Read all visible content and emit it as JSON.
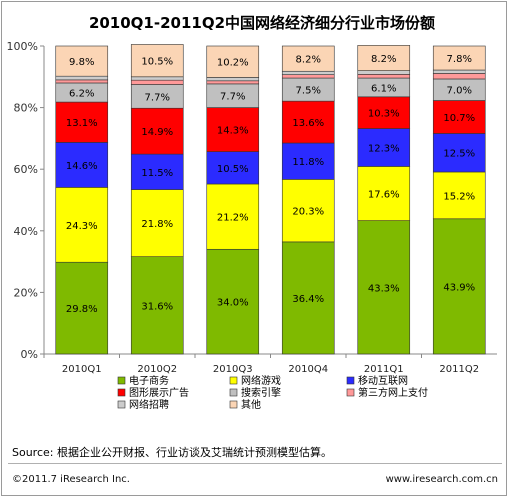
{
  "chart_data": {
    "type": "stacked_bar_percent",
    "title": "2010Q1-2011Q2中国网络经济细分行业市场份额",
    "categories": [
      "2010Q1",
      "2010Q2",
      "2010Q3",
      "2010Q4",
      "2011Q1",
      "2011Q2"
    ],
    "y_ticks": [
      "0%",
      "20%",
      "40%",
      "60%",
      "80%",
      "100%"
    ],
    "ylim": [
      0,
      100
    ],
    "grid": false,
    "series": [
      {
        "name": "电子商务",
        "color": "#7fba00",
        "values": [
          29.8,
          31.6,
          34.0,
          36.4,
          43.3,
          43.9
        ],
        "labels": [
          "29.8%",
          "31.6%",
          "34.0%",
          "36.4%",
          "43.3%",
          "43.9%"
        ]
      },
      {
        "name": "网络游戏",
        "color": "#ffff00",
        "values": [
          24.3,
          21.8,
          21.2,
          20.3,
          17.6,
          15.2
        ],
        "labels": [
          "24.3%",
          "21.8%",
          "21.2%",
          "20.3%",
          "17.6%",
          "15.2%"
        ]
      },
      {
        "name": "移动互联网",
        "color": "#2b2bff",
        "values": [
          14.6,
          11.5,
          10.5,
          11.8,
          12.3,
          12.5
        ],
        "labels": [
          "14.6%",
          "11.5%",
          "10.5%",
          "11.8%",
          "12.3%",
          "12.5%"
        ]
      },
      {
        "name": "图形展示广告",
        "color": "#ff0000",
        "values": [
          13.1,
          14.9,
          14.3,
          13.6,
          10.3,
          10.7
        ],
        "labels": [
          "13.1%",
          "14.9%",
          "14.3%",
          "13.6%",
          "10.3%",
          "10.7%"
        ]
      },
      {
        "name": "搜索引擎",
        "color": "#c0c0c0",
        "values": [
          6.2,
          7.7,
          7.7,
          7.5,
          6.1,
          7.0
        ],
        "labels": [
          "6.2%",
          "7.7%",
          "7.7%",
          "7.5%",
          "6.1%",
          "7.0%"
        ]
      },
      {
        "name": "第三方网上支付",
        "color": "#ff9999",
        "values": [
          1.0,
          1.4,
          1.0,
          1.1,
          1.2,
          1.8
        ],
        "labels": [
          "",
          "",
          "",
          "",
          "",
          ""
        ]
      },
      {
        "name": "网络招聘",
        "color": "#cccccc",
        "values": [
          1.2,
          1.1,
          1.1,
          1.1,
          1.2,
          1.1
        ],
        "labels": [
          "",
          "",
          "",
          "",
          "",
          ""
        ]
      },
      {
        "name": "其他",
        "color": "#fbd5b5",
        "values": [
          9.8,
          10.5,
          10.2,
          8.2,
          8.2,
          7.8
        ],
        "labels": [
          "9.8%",
          "10.5%",
          "10.2%",
          "8.2%",
          "8.2%",
          "7.8%"
        ]
      }
    ],
    "legend_order": [
      "电子商务",
      "网络游戏",
      "移动互联网",
      "图形展示广告",
      "搜索引擎",
      "第三方网上支付",
      "网络招聘",
      "其他"
    ],
    "legend_position": "bottom"
  },
  "footer": {
    "source": "Source: 根据企业公开财报、行业访谈及艾瑞统计预测模型估算。",
    "copyright": "©2011.7 iResearch Inc.",
    "website": "www.iresearch.com.cn"
  }
}
